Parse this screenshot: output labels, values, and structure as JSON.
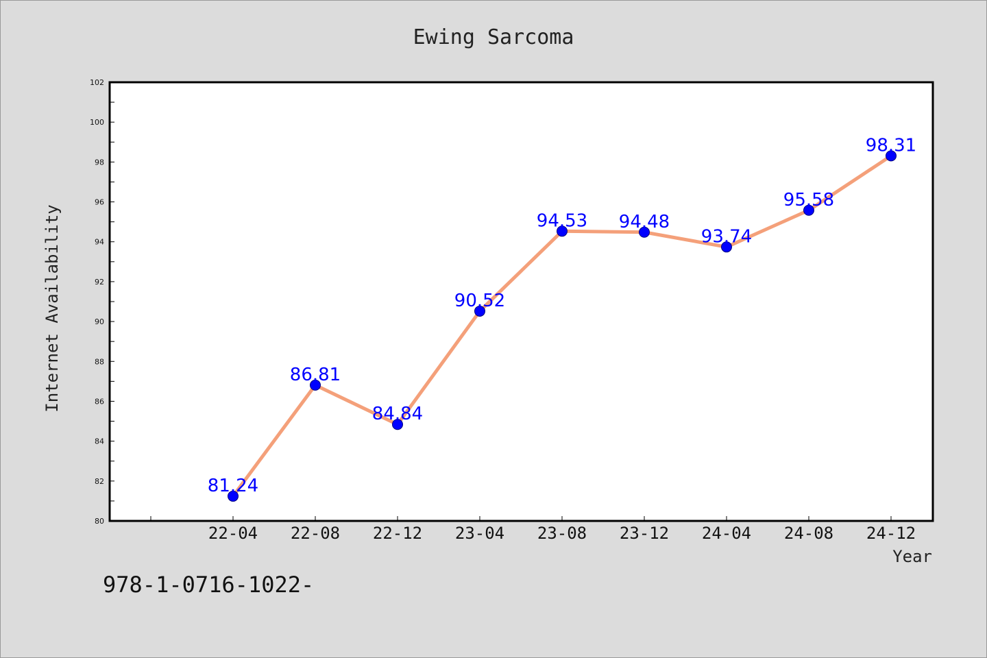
{
  "chart_data": {
    "type": "line",
    "title": "Ewing Sarcoma",
    "xlabel": "Year",
    "ylabel": "Internet Availability",
    "categories": [
      "22-04",
      "22-08",
      "22-12",
      "23-04",
      "23-08",
      "23-12",
      "24-04",
      "24-08",
      "24-12"
    ],
    "series": [
      {
        "values": [
          81.24,
          86.81,
          84.84,
          90.52,
          94.53,
          94.48,
          93.74,
          95.58,
          98.31
        ]
      }
    ],
    "data_labels": [
      "81.24",
      "86.81",
      "84.84",
      "90.52",
      "94.53",
      "94.48",
      "93.74",
      "95.58",
      "98.31"
    ],
    "ylim": [
      80,
      102
    ],
    "yticks": [
      "80",
      "82",
      "84",
      "86",
      "88",
      "90",
      "92",
      "94",
      "96",
      "98",
      "100",
      "102"
    ],
    "grid": false,
    "legend": "none",
    "colors": {
      "line": "#f4a07a",
      "marker": "#0000ff",
      "label": "#0000ff",
      "background": "#dcdcdc",
      "plot_background": "#ffffff"
    }
  },
  "footnote": "978-1-0716-1022-"
}
